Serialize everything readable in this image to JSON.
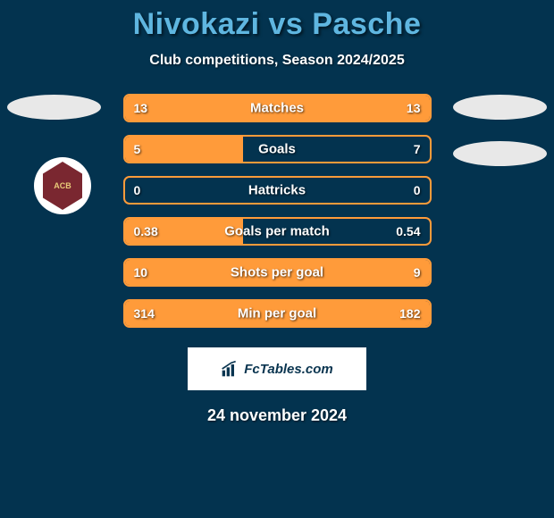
{
  "header": {
    "title": "Nivokazi vs Pasche",
    "subtitle": "Club competitions, Season 2024/2025",
    "title_color": "#5fb6e0",
    "background_color": "#03334f"
  },
  "players": {
    "left": {
      "name": "Nivokazi",
      "badge_text": "ACB",
      "badge_bg": "#7a2730",
      "badge_fg": "#e8c978"
    },
    "right": {
      "name": "Pasche"
    }
  },
  "stats": {
    "bar_border_color": "#ff9b3a",
    "bar_fill_color": "#ff9b3a",
    "rows": [
      {
        "label": "Matches",
        "left": "13",
        "right": "13",
        "left_pct": 100,
        "right_pct": 0
      },
      {
        "label": "Goals",
        "left": "5",
        "right": "7",
        "left_pct": 39,
        "right_pct": 0
      },
      {
        "label": "Hattricks",
        "left": "0",
        "right": "0",
        "left_pct": 0,
        "right_pct": 0
      },
      {
        "label": "Goals per match",
        "left": "0.38",
        "right": "0.54",
        "left_pct": 39,
        "right_pct": 0
      },
      {
        "label": "Shots per goal",
        "left": "10",
        "right": "9",
        "left_pct": 100,
        "right_pct": 0
      },
      {
        "label": "Min per goal",
        "left": "314",
        "right": "182",
        "left_pct": 0,
        "right_pct": 100
      }
    ]
  },
  "attribution": {
    "text": "FcTables.com"
  },
  "footer": {
    "date": "24 november 2024"
  }
}
